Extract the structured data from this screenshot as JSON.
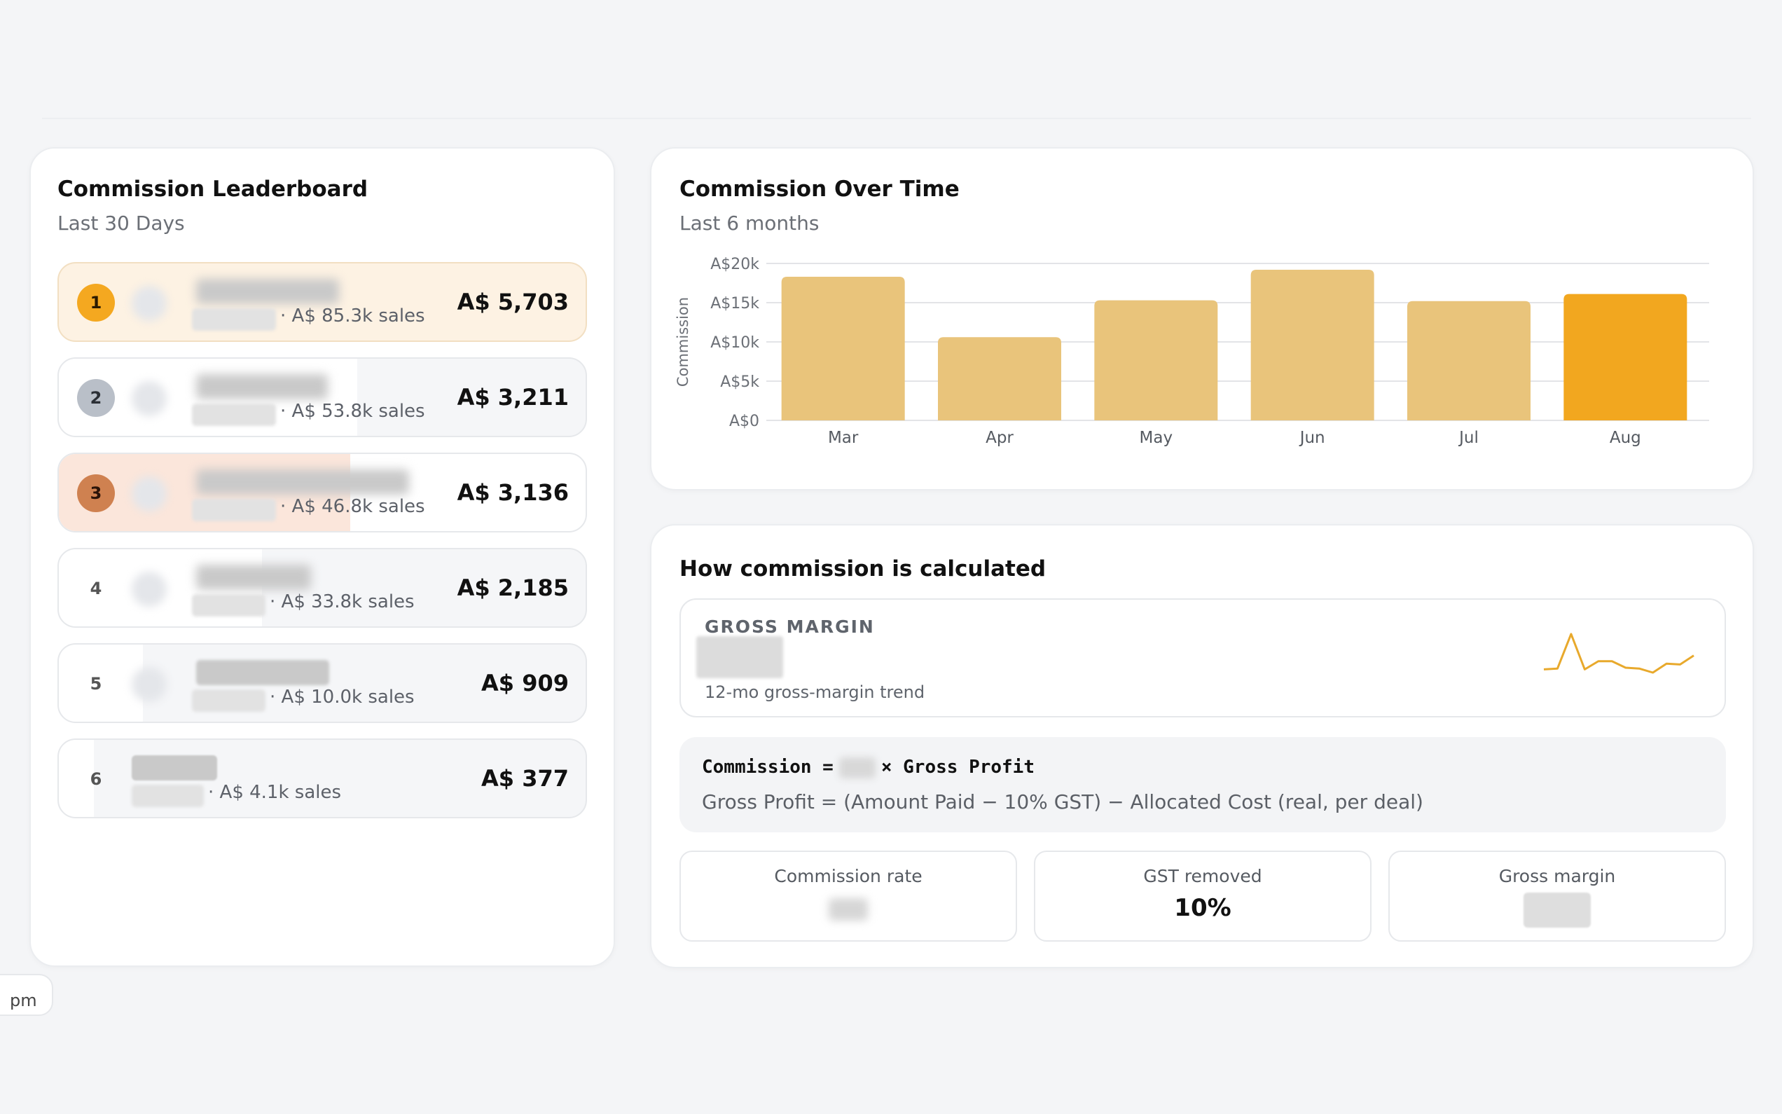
{
  "leaderboard": {
    "title": "Commission Leaderboard",
    "subtitle": "Last 30 Days",
    "rows": [
      {
        "rank": "1",
        "sales": "· A$ 85.3k sales",
        "amount": "A$ 5,703",
        "share": 1.0
      },
      {
        "rank": "2",
        "sales": "· A$ 53.8k sales",
        "amount": "A$ 3,211",
        "share": 0.563
      },
      {
        "rank": "3",
        "sales": "· A$ 46.8k sales",
        "amount": "A$ 3,136",
        "share": 0.55
      },
      {
        "rank": "4",
        "sales": "· A$ 33.8k sales",
        "amount": "A$ 2,185",
        "share": 0.383
      },
      {
        "rank": "5",
        "sales": "· A$ 10.0k sales",
        "amount": "A$ 909",
        "share": 0.159
      },
      {
        "rank": "6",
        "sales": "· A$ 4.1k sales",
        "amount": "A$ 377",
        "share": 0.066
      }
    ]
  },
  "chart_card": {
    "title": "Commission Over Time",
    "subtitle": "Last 6 months"
  },
  "chart_data": {
    "type": "bar",
    "categories": [
      "Mar",
      "Apr",
      "May",
      "Jun",
      "Jul",
      "Aug"
    ],
    "values": [
      18300,
      10600,
      15300,
      19200,
      15200,
      16100
    ],
    "highlight_index": 5,
    "ylabel": "Commission",
    "ylim": [
      0,
      20000
    ],
    "yticks": [
      "A$0",
      "A$5k",
      "A$10k",
      "A$15k",
      "A$20k"
    ],
    "colors": {
      "bar": "#e9c47b",
      "highlight": "#f2a71f",
      "grid": "#e3e4e7"
    }
  },
  "calc": {
    "title": "How commission is calculated",
    "gross_margin_label": "GROSS MARGIN",
    "trend_label": "12-mo gross-margin trend",
    "trend_values": [
      0.08,
      0.1,
      0.95,
      0.08,
      0.28,
      0.28,
      0.12,
      0.1,
      0.0,
      0.22,
      0.2,
      0.42
    ],
    "formula_prefix": "Commission =",
    "formula_suffix": "× Gross Profit",
    "formula_detail": "Gross Profit = (Amount Paid − 10% GST) − Allocated Cost (real, per deal)",
    "stats": [
      {
        "label": "Commission rate",
        "value": ""
      },
      {
        "label": "GST removed",
        "value": "10%"
      },
      {
        "label": "Gross margin",
        "value": ""
      }
    ]
  },
  "side_tab": {
    "label": "pm"
  }
}
